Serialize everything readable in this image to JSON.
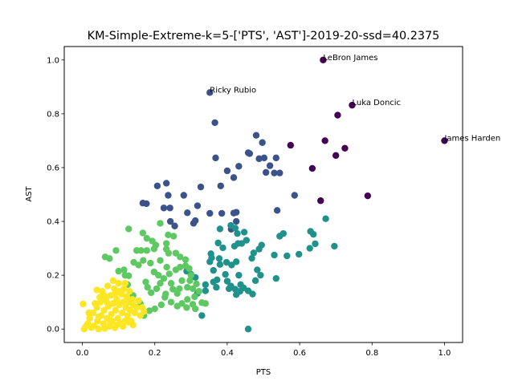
{
  "chart_data": {
    "type": "scatter",
    "title": "KM-Simple-Extreme-k=5-['PTS', 'AST']-2019-20-ssd=40.2375",
    "xlabel": "PTS",
    "ylabel": "AST",
    "xlim": [
      -0.05,
      1.05
    ],
    "ylim": [
      -0.05,
      1.05
    ],
    "xticks": [
      "0.0",
      "0.2",
      "0.4",
      "0.6",
      "0.8",
      "1.0"
    ],
    "yticks": [
      "0.0",
      "0.2",
      "0.4",
      "0.6",
      "0.8",
      "1.0"
    ],
    "grid": false,
    "colors": {
      "cluster_0": "#440154",
      "cluster_1": "#3b528b",
      "cluster_2": "#21918c",
      "cluster_3": "#5ec962",
      "cluster_4": "#fde725"
    },
    "annotations": [
      {
        "text": "LeBron James",
        "x": 0.665,
        "y": 1.0
      },
      {
        "text": "Ricky Rubio",
        "x": 0.352,
        "y": 0.879
      },
      {
        "text": "Luka Doncic",
        "x": 0.745,
        "y": 0.832
      },
      {
        "text": "James Harden",
        "x": 1.0,
        "y": 0.7
      }
    ],
    "series": [
      {
        "color_key": "cluster_0",
        "points": [
          [
            0.665,
            1.0
          ],
          [
            0.745,
            0.832
          ],
          [
            1.0,
            0.7
          ],
          [
            0.705,
            0.795
          ],
          [
            0.67,
            0.7
          ],
          [
            0.725,
            0.672
          ],
          [
            0.575,
            0.683
          ],
          [
            0.635,
            0.597
          ],
          [
            0.7,
            0.645
          ],
          [
            0.658,
            0.477
          ],
          [
            0.788,
            0.495
          ]
        ]
      },
      {
        "color_key": "cluster_1",
        "points": [
          [
            0.352,
            0.879
          ],
          [
            0.366,
            0.767
          ],
          [
            0.368,
            0.636
          ],
          [
            0.48,
            0.72
          ],
          [
            0.497,
            0.693
          ],
          [
            0.458,
            0.655
          ],
          [
            0.462,
            0.652
          ],
          [
            0.488,
            0.633
          ],
          [
            0.502,
            0.636
          ],
          [
            0.535,
            0.636
          ],
          [
            0.507,
            0.582
          ],
          [
            0.53,
            0.58
          ],
          [
            0.545,
            0.58
          ],
          [
            0.518,
            0.607
          ],
          [
            0.432,
            0.605
          ],
          [
            0.4,
            0.588
          ],
          [
            0.418,
            0.563
          ],
          [
            0.382,
            0.532
          ],
          [
            0.28,
            0.497
          ],
          [
            0.327,
            0.528
          ],
          [
            0.207,
            0.532
          ],
          [
            0.232,
            0.542
          ],
          [
            0.237,
            0.497
          ],
          [
            0.167,
            0.468
          ],
          [
            0.177,
            0.466
          ],
          [
            0.225,
            0.45
          ],
          [
            0.242,
            0.45
          ],
          [
            0.29,
            0.432
          ],
          [
            0.318,
            0.458
          ],
          [
            0.352,
            0.43
          ],
          [
            0.385,
            0.43
          ],
          [
            0.418,
            0.431
          ],
          [
            0.425,
            0.434
          ],
          [
            0.425,
            0.4
          ],
          [
            0.312,
            0.403
          ],
          [
            0.307,
            0.393
          ],
          [
            0.243,
            0.4
          ],
          [
            0.255,
            0.383
          ],
          [
            0.538,
            0.441
          ],
          [
            0.586,
            0.497
          ],
          [
            0.411,
            0.371
          ]
        ]
      },
      {
        "color_key": "cluster_2",
        "points": [
          [
            0.672,
            0.41
          ],
          [
            0.63,
            0.363
          ],
          [
            0.638,
            0.352
          ],
          [
            0.643,
            0.317
          ],
          [
            0.696,
            0.308
          ],
          [
            0.628,
            0.3
          ],
          [
            0.598,
            0.278
          ],
          [
            0.555,
            0.355
          ],
          [
            0.545,
            0.345
          ],
          [
            0.565,
            0.272
          ],
          [
            0.53,
            0.275
          ],
          [
            0.535,
            0.188
          ],
          [
            0.495,
            0.312
          ],
          [
            0.488,
            0.297
          ],
          [
            0.473,
            0.283
          ],
          [
            0.468,
            0.263
          ],
          [
            0.483,
            0.22
          ],
          [
            0.492,
            0.2
          ],
          [
            0.44,
            0.318
          ],
          [
            0.43,
            0.318
          ],
          [
            0.42,
            0.308
          ],
          [
            0.428,
            0.355
          ],
          [
            0.422,
            0.375
          ],
          [
            0.41,
            0.385
          ],
          [
            0.447,
            0.36
          ],
          [
            0.453,
            0.33
          ],
          [
            0.38,
            0.372
          ],
          [
            0.375,
            0.32
          ],
          [
            0.388,
            0.302
          ],
          [
            0.378,
            0.262
          ],
          [
            0.38,
            0.24
          ],
          [
            0.355,
            0.28
          ],
          [
            0.357,
            0.265
          ],
          [
            0.352,
            0.25
          ],
          [
            0.362,
            0.218
          ],
          [
            0.362,
            0.175
          ],
          [
            0.37,
            0.155
          ],
          [
            0.372,
            0.183
          ],
          [
            0.398,
            0.248
          ],
          [
            0.412,
            0.238
          ],
          [
            0.425,
            0.25
          ],
          [
            0.432,
            0.2
          ],
          [
            0.437,
            0.165
          ],
          [
            0.41,
            0.16
          ],
          [
            0.4,
            0.178
          ],
          [
            0.395,
            0.203
          ],
          [
            0.405,
            0.15
          ],
          [
            0.458,
            0.142
          ],
          [
            0.445,
            0.153
          ],
          [
            0.47,
            0.13
          ],
          [
            0.435,
            0.14
          ],
          [
            0.425,
            0.128
          ],
          [
            0.422,
            0.148
          ],
          [
            0.478,
            0.18
          ],
          [
            0.458,
            0.0
          ],
          [
            0.3,
            0.203
          ],
          [
            0.288,
            0.215
          ],
          [
            0.312,
            0.192
          ],
          [
            0.34,
            0.165
          ],
          [
            0.33,
            0.05
          ],
          [
            0.34,
            0.142
          ],
          [
            0.318,
            0.133
          ]
        ]
      },
      {
        "color_key": "cluster_3",
        "points": [
          [
            0.128,
            0.372
          ],
          [
            0.167,
            0.357
          ],
          [
            0.178,
            0.337
          ],
          [
            0.193,
            0.327
          ],
          [
            0.215,
            0.393
          ],
          [
            0.237,
            0.35
          ],
          [
            0.252,
            0.345
          ],
          [
            0.232,
            0.318
          ],
          [
            0.203,
            0.312
          ],
          [
            0.198,
            0.298
          ],
          [
            0.15,
            0.292
          ],
          [
            0.162,
            0.292
          ],
          [
            0.178,
            0.292
          ],
          [
            0.232,
            0.297
          ],
          [
            0.238,
            0.282
          ],
          [
            0.258,
            0.282
          ],
          [
            0.27,
            0.268
          ],
          [
            0.285,
            0.258
          ],
          [
            0.093,
            0.292
          ],
          [
            0.063,
            0.268
          ],
          [
            0.075,
            0.262
          ],
          [
            0.168,
            0.255
          ],
          [
            0.142,
            0.248
          ],
          [
            0.155,
            0.238
          ],
          [
            0.188,
            0.245
          ],
          [
            0.215,
            0.255
          ],
          [
            0.233,
            0.23
          ],
          [
            0.258,
            0.22
          ],
          [
            0.27,
            0.23
          ],
          [
            0.285,
            0.235
          ],
          [
            0.295,
            0.225
          ],
          [
            0.3,
            0.2
          ],
          [
            0.297,
            0.18
          ],
          [
            0.275,
            0.18
          ],
          [
            0.29,
            0.155
          ],
          [
            0.305,
            0.15
          ],
          [
            0.315,
            0.168
          ],
          [
            0.322,
            0.14
          ],
          [
            0.31,
            0.12
          ],
          [
            0.29,
            0.11
          ],
          [
            0.275,
            0.095
          ],
          [
            0.262,
            0.085
          ],
          [
            0.288,
            0.08
          ],
          [
            0.305,
            0.092
          ],
          [
            0.33,
            0.098
          ],
          [
            0.34,
            0.095
          ],
          [
            0.312,
            0.075
          ],
          [
            0.245,
            0.1
          ],
          [
            0.228,
            0.118
          ],
          [
            0.218,
            0.09
          ],
          [
            0.2,
            0.075
          ],
          [
            0.185,
            0.068
          ],
          [
            0.17,
            0.05
          ],
          [
            0.16,
            0.095
          ],
          [
            0.14,
            0.125
          ],
          [
            0.125,
            0.165
          ],
          [
            0.118,
            0.2
          ],
          [
            0.1,
            0.215
          ],
          [
            0.115,
            0.22
          ],
          [
            0.128,
            0.198
          ],
          [
            0.175,
            0.175
          ],
          [
            0.18,
            0.155
          ],
          [
            0.19,
            0.135
          ],
          [
            0.205,
            0.15
          ],
          [
            0.215,
            0.17
          ],
          [
            0.225,
            0.188
          ],
          [
            0.245,
            0.17
          ],
          [
            0.25,
            0.148
          ],
          [
            0.262,
            0.132
          ],
          [
            0.268,
            0.15
          ],
          [
            0.23,
            0.13
          ],
          [
            0.198,
            0.212
          ],
          [
            0.21,
            0.2
          ],
          [
            0.24,
            0.205
          ]
        ]
      },
      {
        "color_key": "cluster_4",
        "points": [
          [
            0.002,
            0.093
          ],
          [
            0.01,
            0.01
          ],
          [
            0.005,
            0.0
          ],
          [
            0.015,
            0.02
          ],
          [
            0.02,
            0.04
          ],
          [
            0.025,
            0.005
          ],
          [
            0.03,
            0.06
          ],
          [
            0.032,
            0.012
          ],
          [
            0.04,
            0.08
          ],
          [
            0.042,
            0.03
          ],
          [
            0.045,
            0.0
          ],
          [
            0.05,
            0.1
          ],
          [
            0.052,
            0.05
          ],
          [
            0.055,
            0.14
          ],
          [
            0.058,
            0.02
          ],
          [
            0.06,
            0.07
          ],
          [
            0.062,
            0.002
          ],
          [
            0.065,
            0.11
          ],
          [
            0.068,
            0.04
          ],
          [
            0.07,
            0.16
          ],
          [
            0.072,
            0.085
          ],
          [
            0.075,
            0.01
          ],
          [
            0.078,
            0.125
          ],
          [
            0.08,
            0.055
          ],
          [
            0.082,
            0.03
          ],
          [
            0.085,
            0.095
          ],
          [
            0.088,
            0.15
          ],
          [
            0.09,
            0.005
          ],
          [
            0.092,
            0.07
          ],
          [
            0.095,
            0.11
          ],
          [
            0.098,
            0.04
          ],
          [
            0.1,
            0.17
          ],
          [
            0.102,
            0.09
          ],
          [
            0.105,
            0.02
          ],
          [
            0.108,
            0.13
          ],
          [
            0.11,
            0.06
          ],
          [
            0.112,
            0.1
          ],
          [
            0.115,
            0.15
          ],
          [
            0.118,
            0.03
          ],
          [
            0.12,
            0.08
          ],
          [
            0.122,
            0.12
          ],
          [
            0.125,
            0.05
          ],
          [
            0.128,
            0.1
          ],
          [
            0.13,
            0.14
          ],
          [
            0.132,
            0.07
          ],
          [
            0.135,
            0.03
          ],
          [
            0.138,
            0.11
          ],
          [
            0.14,
            0.09
          ],
          [
            0.145,
            0.06
          ],
          [
            0.15,
            0.08
          ],
          [
            0.155,
            0.105
          ],
          [
            0.16,
            0.05
          ],
          [
            0.165,
            0.08
          ],
          [
            0.17,
            0.065
          ],
          [
            0.06,
            0.125
          ],
          [
            0.035,
            0.095
          ],
          [
            0.018,
            0.06
          ],
          [
            0.048,
            0.118
          ],
          [
            0.085,
            0.18
          ],
          [
            0.102,
            0.14
          ],
          [
            0.078,
            0.025
          ],
          [
            0.095,
            0.015
          ],
          [
            0.112,
            0.01
          ],
          [
            0.128,
            0.025
          ],
          [
            0.045,
            0.045
          ],
          [
            0.07,
            0.095
          ],
          [
            0.04,
            0.145
          ],
          [
            0.09,
            0.13
          ],
          [
            0.118,
            0.17
          ],
          [
            0.14,
            0.015
          ]
        ]
      }
    ]
  }
}
